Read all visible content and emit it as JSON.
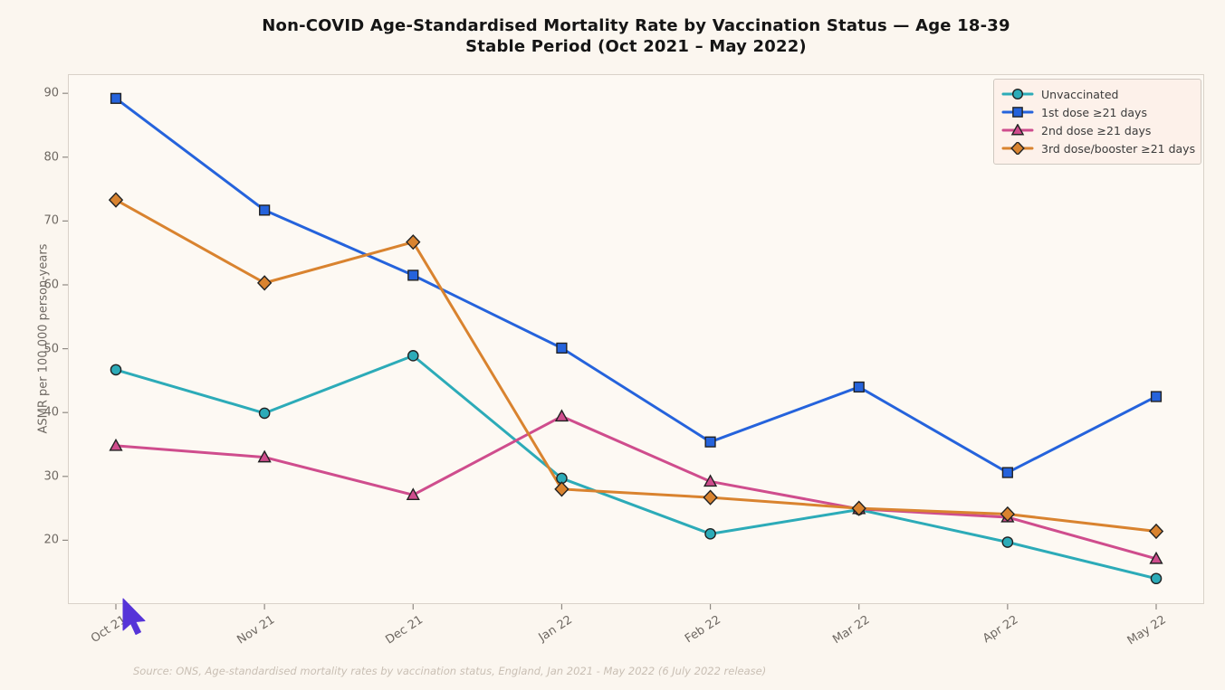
{
  "title": {
    "line1": "Non-COVID Age-Standardised Mortality Rate by Vaccination Status — Age 18-39",
    "line2": "Stable Period (Oct 2021 – May 2022)"
  },
  "source_note": "Source: ONS, Age-standardised mortality rates by vaccination status, England, Jan 2021 - May 2022 (6 July 2022 release)",
  "colors": {
    "page_background": "#fbf6ef",
    "plot_background": "#fdf9f3",
    "frame_border": "#d9d2c9",
    "title_text": "#151515",
    "tick_text": "#6e6862",
    "tick_mark": "#8f8983",
    "legend_background": "#fdf1ea",
    "legend_border": "#cfc8c0",
    "legend_text": "#3a3a3a",
    "source_text": "#c9bfb4",
    "marker_edge": "#222222",
    "cursor": "#5634d8"
  },
  "chart_data": {
    "type": "line",
    "title": "Non-COVID Age-Standardised Mortality Rate by Vaccination Status — Age 18-39 / Stable Period (Oct 2021 – May 2022)",
    "xlabel": "",
    "ylabel": "ASMR per 100,000 person-years",
    "categories": [
      "Oct 21",
      "Nov 21",
      "Dec 21",
      "Jan 22",
      "Feb 22",
      "Mar 22",
      "Apr 22",
      "May 22"
    ],
    "yticks": [
      20,
      30,
      40,
      50,
      60,
      70,
      80,
      90
    ],
    "ylim": [
      10,
      93
    ],
    "grid": false,
    "legend_position": "top-right",
    "series": [
      {
        "name": "Unvaccinated",
        "color": "#2cabb8",
        "marker": "circle",
        "values": [
          46.7,
          39.9,
          48.9,
          29.7,
          21.0,
          24.8,
          19.7,
          14.0
        ]
      },
      {
        "name": "1st dose ≥21 days",
        "color": "#2563dc",
        "marker": "square",
        "values": [
          89.2,
          71.7,
          61.5,
          50.1,
          35.4,
          44.0,
          30.6,
          42.5
        ]
      },
      {
        "name": "2nd dose ≥21 days",
        "color": "#cf4d8d",
        "marker": "triangle",
        "values": [
          34.8,
          33.0,
          27.1,
          39.4,
          29.2,
          24.9,
          23.6,
          17.1
        ]
      },
      {
        "name": "3rd dose/booster ≥21 days",
        "color": "#d9832f",
        "marker": "diamond",
        "values": [
          73.3,
          60.3,
          66.7,
          28.0,
          26.7,
          25.0,
          24.1,
          21.4
        ]
      }
    ]
  }
}
